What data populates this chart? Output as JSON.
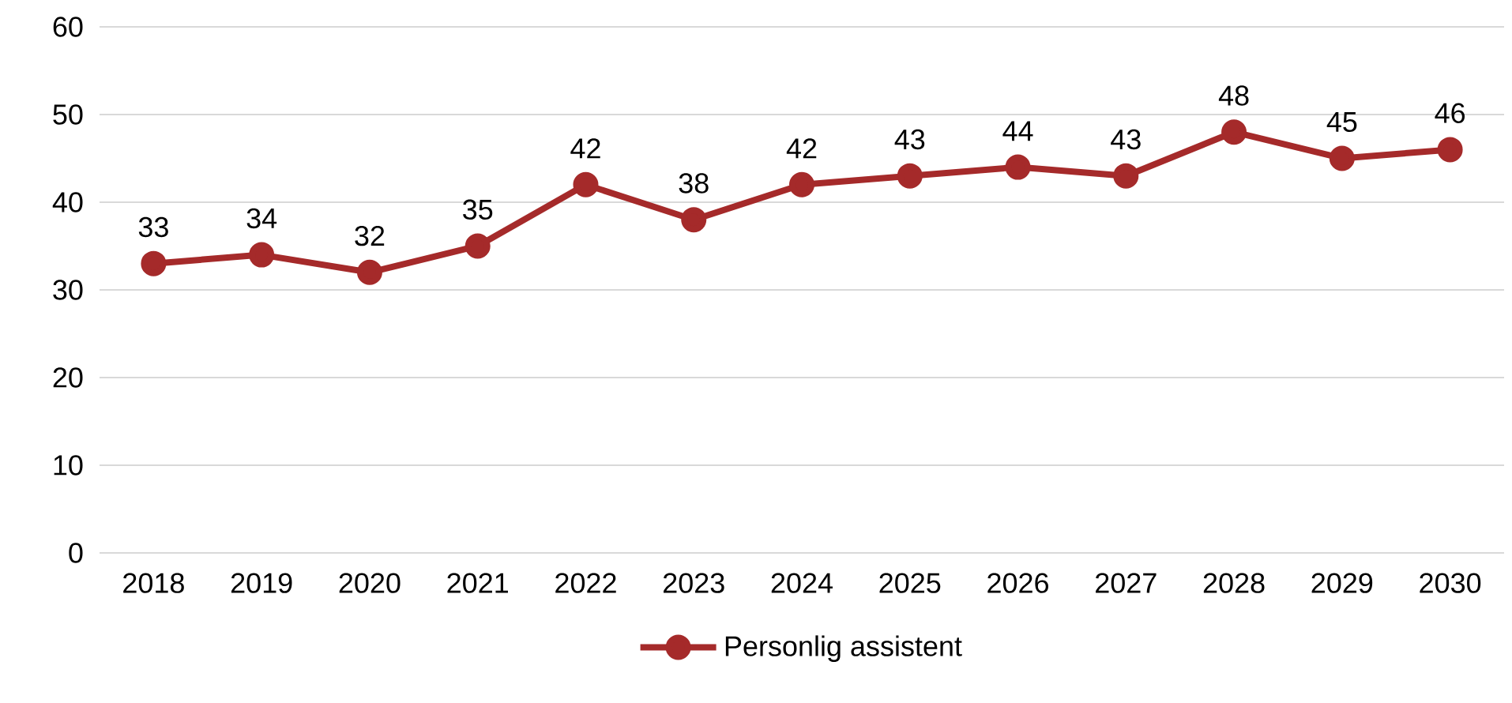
{
  "chart_data": {
    "type": "line",
    "categories": [
      "2018",
      "2019",
      "2020",
      "2021",
      "2022",
      "2023",
      "2024",
      "2025",
      "2026",
      "2027",
      "2028",
      "2029",
      "2030"
    ],
    "series": [
      {
        "name": "Personlig assistent",
        "color": "#a52a2a",
        "values": [
          33,
          34,
          32,
          35,
          42,
          38,
          42,
          43,
          44,
          43,
          48,
          45,
          46
        ]
      }
    ],
    "ylim": [
      0,
      60
    ],
    "yticks": [
      0,
      10,
      20,
      30,
      40,
      50,
      60
    ],
    "grid": "y",
    "legend": "bottom",
    "marker": "circle",
    "line_style": "solid",
    "data_labels": true
  }
}
